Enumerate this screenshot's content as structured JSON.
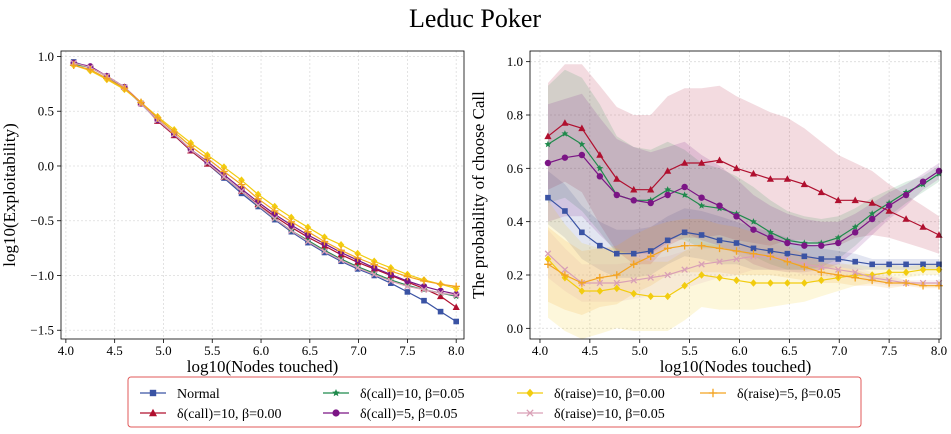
{
  "title": "Leduc Poker",
  "chart_data": [
    {
      "type": "line",
      "xlabel": "log10(Nodes touched)",
      "ylabel": "log10(Exploitability)",
      "xlim": [
        3.95,
        8.08
      ],
      "ylim": [
        -1.58,
        1.05
      ],
      "xticks": [
        4.0,
        4.5,
        5.0,
        5.5,
        6.0,
        6.5,
        7.0,
        7.5,
        8.0
      ],
      "yticks": [
        -1.5,
        -1.0,
        -0.5,
        0.0,
        0.5,
        1.0
      ],
      "xtick_labels": [
        "4.0",
        "4.5",
        "5.0",
        "5.5",
        "6.0",
        "6.5",
        "7.0",
        "7.5",
        "8.0"
      ],
      "ytick_labels": [
        "−1.5",
        "−1.0",
        "−0.5",
        "0.0",
        "0.5",
        "1.0"
      ],
      "grid": true,
      "x": [
        4.08,
        4.25,
        4.42,
        4.6,
        4.77,
        4.94,
        5.11,
        5.28,
        5.45,
        5.62,
        5.8,
        5.97,
        6.14,
        6.31,
        6.48,
        6.65,
        6.82,
        6.99,
        7.16,
        7.33,
        7.5,
        7.67,
        7.84,
        8.0
      ],
      "series": [
        {
          "name": "Normal",
          "values": [
            0.95,
            0.9,
            0.82,
            0.72,
            0.57,
            0.42,
            0.28,
            0.14,
            0.02,
            -0.11,
            -0.25,
            -0.37,
            -0.49,
            -0.6,
            -0.7,
            -0.79,
            -0.87,
            -0.94,
            -1.0,
            -1.07,
            -1.15,
            -1.23,
            -1.33,
            -1.42
          ]
        },
        {
          "name": "δ(call)=10, β=0.00",
          "values": [
            0.94,
            0.9,
            0.82,
            0.72,
            0.58,
            0.41,
            0.28,
            0.14,
            0.02,
            -0.1,
            -0.23,
            -0.35,
            -0.46,
            -0.56,
            -0.65,
            -0.73,
            -0.81,
            -0.88,
            -0.94,
            -1.0,
            -1.06,
            -1.12,
            -1.19,
            -1.29
          ]
        },
        {
          "name": "δ(call)=10, β=0.05",
          "values": [
            0.93,
            0.9,
            0.82,
            0.71,
            0.57,
            0.42,
            0.29,
            0.15,
            0.03,
            -0.1,
            -0.23,
            -0.36,
            -0.48,
            -0.59,
            -0.68,
            -0.77,
            -0.85,
            -0.92,
            -0.98,
            -1.04,
            -1.09,
            -1.13,
            -1.16,
            -1.19
          ]
        },
        {
          "name": "δ(call)=5, β=0.05",
          "values": [
            0.94,
            0.91,
            0.82,
            0.72,
            0.57,
            0.42,
            0.29,
            0.15,
            0.04,
            -0.08,
            -0.21,
            -0.33,
            -0.44,
            -0.54,
            -0.63,
            -0.71,
            -0.79,
            -0.86,
            -0.93,
            -0.99,
            -1.05,
            -1.1,
            -1.14,
            -1.17
          ]
        },
        {
          "name": "δ(raise)=10, β=0.00",
          "values": [
            0.92,
            0.87,
            0.79,
            0.7,
            0.58,
            0.45,
            0.33,
            0.21,
            0.1,
            -0.01,
            -0.13,
            -0.26,
            -0.37,
            -0.47,
            -0.56,
            -0.65,
            -0.72,
            -0.8,
            -0.87,
            -0.93,
            -0.99,
            -1.04,
            -1.08,
            -1.12
          ]
        },
        {
          "name": "δ(raise)=10, β=0.05",
          "values": [
            0.94,
            0.9,
            0.82,
            0.72,
            0.57,
            0.42,
            0.29,
            0.15,
            0.03,
            -0.1,
            -0.23,
            -0.36,
            -0.48,
            -0.59,
            -0.69,
            -0.78,
            -0.86,
            -0.93,
            -0.99,
            -1.05,
            -1.1,
            -1.13,
            -1.16,
            -1.18
          ]
        },
        {
          "name": "δ(raise)=5, β=0.05",
          "values": [
            0.92,
            0.88,
            0.8,
            0.71,
            0.58,
            0.44,
            0.31,
            0.18,
            0.07,
            -0.05,
            -0.17,
            -0.3,
            -0.41,
            -0.51,
            -0.6,
            -0.69,
            -0.77,
            -0.84,
            -0.9,
            -0.96,
            -1.01,
            -1.05,
            -1.08,
            -1.1
          ]
        }
      ]
    },
    {
      "type": "line",
      "xlabel": "log10(Nodes touched)",
      "ylabel": "The probability of choose Call",
      "xlim": [
        3.9,
        8.02
      ],
      "ylim": [
        -0.04,
        1.04
      ],
      "xticks": [
        4.0,
        4.5,
        5.0,
        5.5,
        6.0,
        6.5,
        7.0,
        7.5,
        8.0
      ],
      "yticks": [
        0.0,
        0.2,
        0.4,
        0.6,
        0.8,
        1.0
      ],
      "xtick_labels": [
        "4.0",
        "4.5",
        "5.0",
        "5.5",
        "6.0",
        "6.5",
        "7.0",
        "7.5",
        "8.0"
      ],
      "ytick_labels": [
        "0.0",
        "0.2",
        "0.4",
        "0.6",
        "0.8",
        "1.0"
      ],
      "grid": true,
      "x": [
        4.08,
        4.25,
        4.42,
        4.6,
        4.77,
        4.94,
        5.11,
        5.28,
        5.45,
        5.62,
        5.8,
        5.97,
        6.14,
        6.31,
        6.48,
        6.65,
        6.82,
        6.99,
        7.16,
        7.33,
        7.5,
        7.67,
        7.84,
        8.0
      ],
      "series": [
        {
          "name": "Normal",
          "values": [
            0.49,
            0.44,
            0.36,
            0.31,
            0.28,
            0.28,
            0.29,
            0.33,
            0.36,
            0.35,
            0.33,
            0.32,
            0.3,
            0.29,
            0.28,
            0.27,
            0.26,
            0.26,
            0.25,
            0.24,
            0.24,
            0.24,
            0.24,
            0.24
          ],
          "band": [
            0.1,
            0.1,
            0.1,
            0.09,
            0.09,
            0.09,
            0.09,
            0.09,
            0.09,
            0.09,
            0.09,
            0.08,
            0.08,
            0.07,
            0.06,
            0.05,
            0.04,
            0.03,
            0.03,
            0.02,
            0.02,
            0.02,
            0.02,
            0.02
          ]
        },
        {
          "name": "δ(call)=10, β=0.00",
          "values": [
            0.72,
            0.77,
            0.75,
            0.65,
            0.56,
            0.52,
            0.52,
            0.59,
            0.62,
            0.62,
            0.63,
            0.6,
            0.58,
            0.56,
            0.56,
            0.54,
            0.51,
            0.48,
            0.48,
            0.47,
            0.44,
            0.41,
            0.38,
            0.35
          ],
          "band": [
            0.2,
            0.22,
            0.24,
            0.26,
            0.27,
            0.28,
            0.28,
            0.28,
            0.28,
            0.28,
            0.28,
            0.27,
            0.26,
            0.25,
            0.23,
            0.21,
            0.19,
            0.17,
            0.14,
            0.12,
            0.1,
            0.09,
            0.08,
            0.07
          ]
        },
        {
          "name": "δ(call)=10, β=0.05",
          "values": [
            0.69,
            0.73,
            0.69,
            0.6,
            0.5,
            0.48,
            0.48,
            0.52,
            0.5,
            0.46,
            0.45,
            0.43,
            0.4,
            0.36,
            0.33,
            0.32,
            0.32,
            0.34,
            0.38,
            0.43,
            0.47,
            0.51,
            0.54,
            0.58
          ],
          "band": [
            0.22,
            0.24,
            0.25,
            0.24,
            0.22,
            0.2,
            0.19,
            0.18,
            0.17,
            0.16,
            0.15,
            0.14,
            0.13,
            0.12,
            0.11,
            0.1,
            0.09,
            0.08,
            0.07,
            0.06,
            0.05,
            0.04,
            0.03,
            0.03
          ]
        },
        {
          "name": "δ(call)=5, β=0.05",
          "values": [
            0.62,
            0.64,
            0.65,
            0.57,
            0.5,
            0.48,
            0.47,
            0.5,
            0.53,
            0.49,
            0.46,
            0.42,
            0.37,
            0.34,
            0.32,
            0.31,
            0.31,
            0.32,
            0.36,
            0.41,
            0.46,
            0.5,
            0.55,
            0.59
          ],
          "band": [
            0.22,
            0.22,
            0.23,
            0.22,
            0.21,
            0.2,
            0.19,
            0.18,
            0.17,
            0.16,
            0.15,
            0.14,
            0.13,
            0.12,
            0.11,
            0.1,
            0.09,
            0.08,
            0.07,
            0.06,
            0.05,
            0.04,
            0.03,
            0.03
          ]
        },
        {
          "name": "δ(raise)=10, β=0.00",
          "values": [
            0.26,
            0.19,
            0.14,
            0.14,
            0.15,
            0.13,
            0.12,
            0.12,
            0.16,
            0.2,
            0.19,
            0.18,
            0.17,
            0.17,
            0.17,
            0.17,
            0.18,
            0.19,
            0.2,
            0.2,
            0.21,
            0.21,
            0.22,
            0.22
          ],
          "band": [
            0.22,
            0.2,
            0.18,
            0.16,
            0.15,
            0.14,
            0.13,
            0.13,
            0.13,
            0.12,
            0.12,
            0.11,
            0.1,
            0.09,
            0.08,
            0.07,
            0.06,
            0.05,
            0.04,
            0.03,
            0.03,
            0.02,
            0.02,
            0.02
          ]
        },
        {
          "name": "δ(raise)=10, β=0.05",
          "values": [
            0.28,
            0.22,
            0.17,
            0.17,
            0.17,
            0.18,
            0.19,
            0.2,
            0.22,
            0.24,
            0.25,
            0.26,
            0.27,
            0.27,
            0.26,
            0.24,
            0.23,
            0.22,
            0.21,
            0.19,
            0.18,
            0.17,
            0.17,
            0.17
          ],
          "band": [
            0.09,
            0.08,
            0.07,
            0.07,
            0.07,
            0.07,
            0.07,
            0.07,
            0.07,
            0.07,
            0.06,
            0.06,
            0.05,
            0.05,
            0.04,
            0.04,
            0.03,
            0.03,
            0.02,
            0.02,
            0.02,
            0.01,
            0.01,
            0.01
          ]
        },
        {
          "name": "δ(raise)=5, β=0.05",
          "values": [
            0.24,
            0.2,
            0.17,
            0.19,
            0.2,
            0.24,
            0.27,
            0.3,
            0.31,
            0.31,
            0.3,
            0.29,
            0.28,
            0.27,
            0.25,
            0.23,
            0.21,
            0.2,
            0.19,
            0.18,
            0.17,
            0.17,
            0.16,
            0.16
          ],
          "band": [
            0.14,
            0.13,
            0.12,
            0.11,
            0.11,
            0.11,
            0.11,
            0.1,
            0.1,
            0.1,
            0.09,
            0.09,
            0.08,
            0.07,
            0.06,
            0.05,
            0.04,
            0.03,
            0.03,
            0.02,
            0.02,
            0.01,
            0.01,
            0.01
          ]
        }
      ]
    }
  ],
  "series_style": [
    {
      "color": "#3a53a4",
      "marker": "square"
    },
    {
      "color": "#b0102f",
      "marker": "triangle"
    },
    {
      "color": "#1f8a4c",
      "marker": "star"
    },
    {
      "color": "#7b1585",
      "marker": "circle"
    },
    {
      "color": "#f2cc0f",
      "marker": "diamond"
    },
    {
      "color": "#d9a0b6",
      "marker": "x"
    },
    {
      "color": "#f3a321",
      "marker": "plus"
    }
  ],
  "legend": {
    "placement": "bottom",
    "entries": [
      "Normal",
      "δ(call)=10, β=0.05",
      "δ(raise)=10, β=0.00",
      "δ(raise)=5, β=0.05",
      "δ(call)=10, β=0.00",
      "δ(call)=5, β=0.05",
      "δ(raise)=10, β=0.05"
    ],
    "series_index": [
      0,
      2,
      4,
      6,
      1,
      3,
      5
    ],
    "border_color": "#e05a5a"
  }
}
